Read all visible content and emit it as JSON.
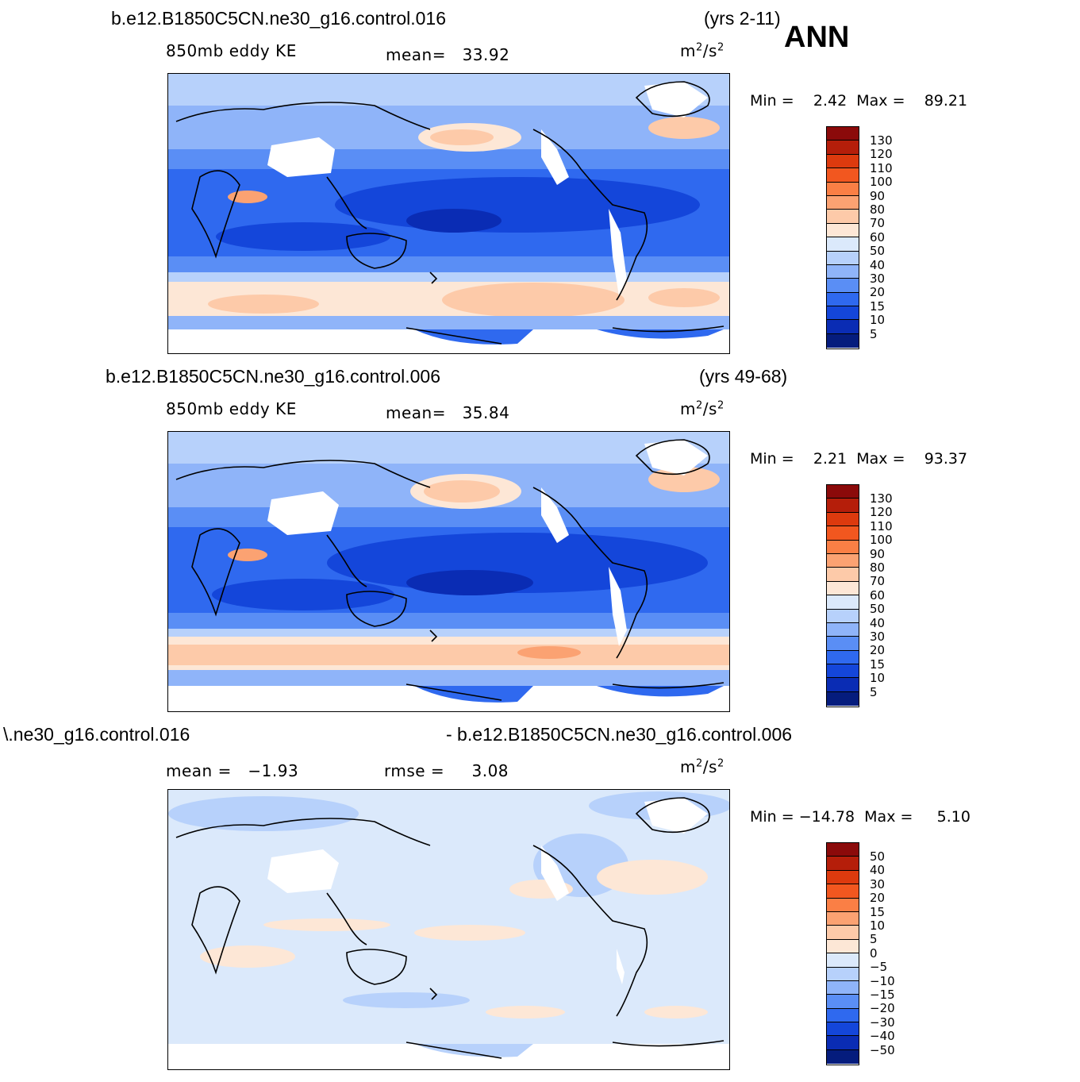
{
  "season": "ANN",
  "units_base": "m",
  "units_exp1": "2",
  "units_mid": "/s",
  "units_exp2": "2",
  "panels": [
    {
      "case": "b.e12.B1850C5CN.ne30_g16.control.016",
      "years": "(yrs 2-11)",
      "variable": "850mb eddy KE",
      "stat_label": "mean=",
      "stat_value": "33.92",
      "min_label": "Min =",
      "min_value": "2.42",
      "max_label": "Max =",
      "max_value": "89.21",
      "levels": [
        "130",
        "120",
        "110",
        "100",
        "90",
        "80",
        "70",
        "60",
        "50",
        "40",
        "30",
        "20",
        "15",
        "10",
        "5"
      ]
    },
    {
      "case": "b.e12.B1850C5CN.ne30_g16.control.006",
      "years": "(yrs 49-68)",
      "variable": "850mb eddy KE",
      "stat_label": "mean=",
      "stat_value": "35.84",
      "min_label": "Min =",
      "min_value": "2.21",
      "max_label": "Max =",
      "max_value": "93.37",
      "levels": [
        "130",
        "120",
        "110",
        "100",
        "90",
        "80",
        "70",
        "60",
        "50",
        "40",
        "30",
        "20",
        "15",
        "10",
        "5"
      ]
    },
    {
      "case_left": "\\.ne30_g16.control.016",
      "case_right": "- b.e12.B1850C5CN.ne30_g16.control.006",
      "mean_label": "mean =",
      "mean_value": "−1.93",
      "rmse_label": "rmse =",
      "rmse_value": "3.08",
      "min_label": "Min =",
      "min_value": "−14.78",
      "max_label": "Max =",
      "max_value": "5.10",
      "levels": [
        "50",
        "40",
        "30",
        "20",
        "15",
        "10",
        "5",
        "0",
        "−5",
        "−10",
        "−15",
        "−20",
        "−30",
        "−40",
        "−50"
      ]
    }
  ],
  "colors": {
    "abs_scale": [
      "#8b0a0a",
      "#b51e0a",
      "#dd3a0e",
      "#f2571f",
      "#fa7f45",
      "#fba272",
      "#fdcaa9",
      "#fde7d6",
      "#dbe9fb",
      "#b7d1fb",
      "#8fb4f9",
      "#5a8ef5",
      "#2f69ef",
      "#1446da",
      "#0a2cb4",
      "#051c7d"
    ],
    "diff_scale": [
      "#8b0a0a",
      "#b51e0a",
      "#dd3a0e",
      "#f2571f",
      "#fa7f45",
      "#fba272",
      "#fdcaa9",
      "#fde7d6",
      "#dbe9fb",
      "#b7d1fb",
      "#8fb4f9",
      "#5a8ef5",
      "#2f69ef",
      "#1446da",
      "#0a2cb4",
      "#051c7d"
    ]
  }
}
